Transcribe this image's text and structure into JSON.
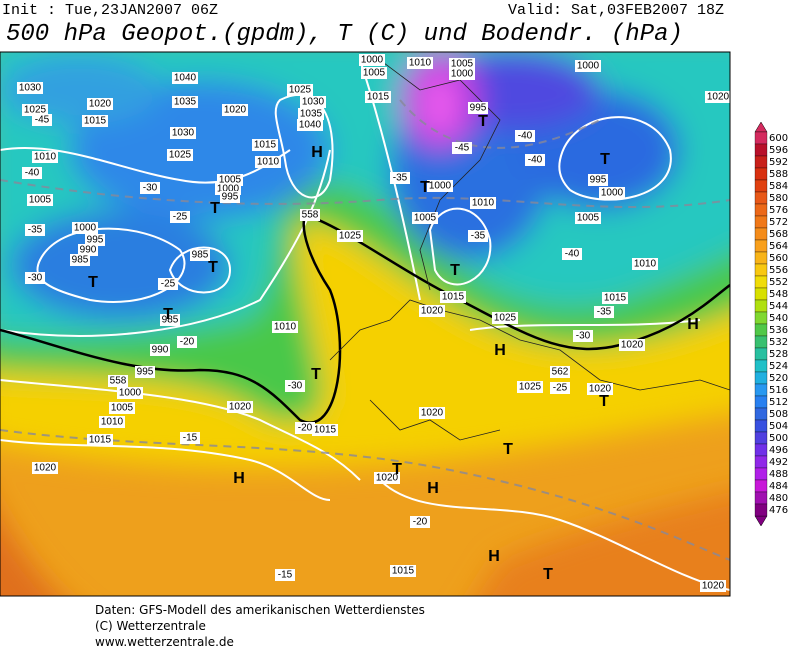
{
  "header": {
    "init": "Init : Tue,23JAN2007 06Z",
    "valid": "Valid: Sat,03FEB2007 18Z",
    "title": "500 hPa Geopot.(gpdm), T (C) und Bodendr. (hPa)"
  },
  "colorbar": {
    "levels": [
      600,
      596,
      592,
      588,
      584,
      580,
      576,
      572,
      568,
      564,
      560,
      556,
      552,
      548,
      544,
      540,
      536,
      532,
      528,
      524,
      520,
      516,
      512,
      508,
      504,
      500,
      496,
      492,
      488,
      484,
      480,
      476
    ],
    "colors": [
      "#d42a5e",
      "#b8102a",
      "#c8201a",
      "#d83010",
      "#e04010",
      "#e85818",
      "#ec6818",
      "#f07818",
      "#f48c1a",
      "#f8a01c",
      "#f8b418",
      "#f8c810",
      "#f0dc08",
      "#d8e000",
      "#b0e010",
      "#80d830",
      "#50c848",
      "#38c070",
      "#28c0a0",
      "#20c0c8",
      "#20b0e0",
      "#2898f0",
      "#2880f0",
      "#3068e0",
      "#3850e0",
      "#5040e0",
      "#7030e8",
      "#9028e8",
      "#b020e8",
      "#c818d8",
      "#a010b0",
      "#800080"
    ]
  },
  "map": {
    "labels": [
      "1030",
      "1025",
      "1020",
      "1015",
      "1040",
      "1035",
      "1030",
      "1025",
      "1020",
      "1025",
      "1030",
      "1035",
      "1040",
      "1015",
      "1010",
      "1005",
      "1000",
      "995",
      "1010",
      "1005",
      "1000",
      "995",
      "990",
      "985",
      "985",
      "985",
      "990",
      "995",
      "1000",
      "1005",
      "1010",
      "1015",
      "1020",
      "1020",
      "1010",
      "1015",
      "1025",
      "1000",
      "1005",
      "1015",
      "1010",
      "1005",
      "1000",
      "995",
      "1000",
      "1005",
      "1010",
      "1000",
      "995",
      "1000",
      "1005",
      "1010",
      "1015",
      "1020",
      "1015",
      "1020",
      "1025",
      "1020",
      "1020",
      "1025",
      "1020",
      "1015",
      "1020",
      "1020",
      "-45",
      "-40",
      "-35",
      "-30",
      "-30",
      "-25",
      "-25",
      "-20",
      "-30",
      "-20",
      "-15",
      "-20",
      "-15",
      "-45",
      "-40",
      "-40",
      "-35",
      "-40",
      "-35",
      "-30",
      "-25",
      "-35",
      "558",
      "558",
      "562"
    ],
    "centers": [
      "H",
      "T",
      "T",
      "T",
      "T",
      "T",
      "T",
      "T",
      "T",
      "T",
      "H",
      "H",
      "H",
      "T",
      "H",
      "T",
      "T",
      "H",
      "T"
    ]
  },
  "footer": {
    "lines": [
      "Daten: GFS-Modell des amerikanischen Wetterdienstes",
      "(C) Wetterzentrale",
      "www.wetterzentrale.de"
    ]
  }
}
